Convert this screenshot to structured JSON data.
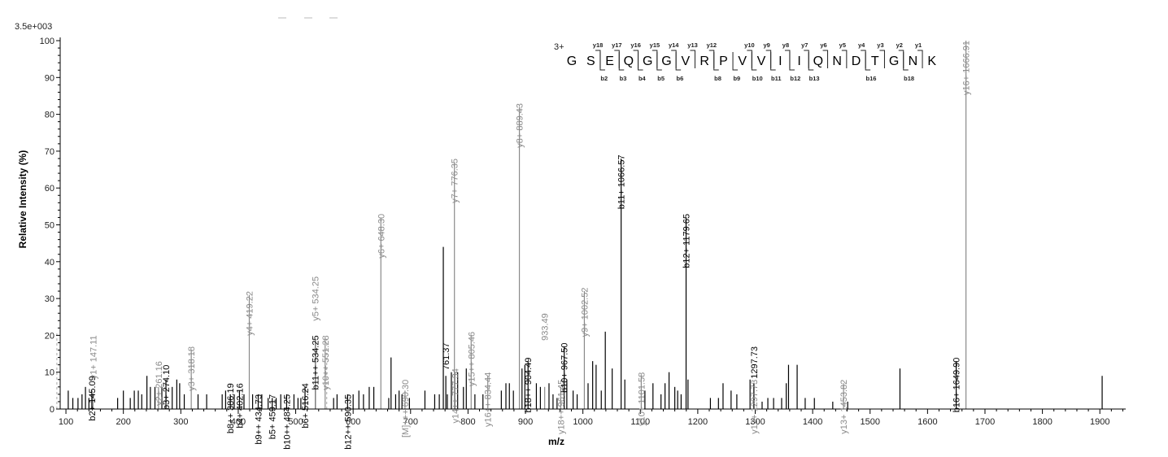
{
  "chart_data": {
    "type": "bar",
    "title": "",
    "scale_label": "3.5e+003",
    "xlabel": "m/z",
    "ylabel": "Relative   Intensity (%)",
    "xlim": [
      90,
      1945
    ],
    "ylim": [
      0,
      100
    ],
    "x_ticks": [
      100,
      200,
      300,
      400,
      500,
      600,
      700,
      800,
      900,
      1000,
      1100,
      1200,
      1300,
      1400,
      1500,
      1600,
      1700,
      1800,
      1900
    ],
    "y_ticks": [
      0,
      10,
      20,
      30,
      40,
      50,
      60,
      70,
      80,
      90,
      100
    ],
    "annotated_peaks": [
      {
        "mz": 145.09,
        "intensity": 5,
        "label": "b2+ 145.09",
        "color": "black",
        "label_y": 9
      },
      {
        "mz": 147.11,
        "intensity": 4,
        "label": "y1+ 147.11",
        "color": "gray",
        "label_y": 20
      },
      {
        "mz": 261.16,
        "intensity": 6,
        "label": "y2+ 261.16",
        "color": "gray",
        "label_y": 13
      },
      {
        "mz": 274.1,
        "intensity": 8,
        "label": "b3+ 274.10",
        "color": "black",
        "label_y": 12
      },
      {
        "mz": 318.18,
        "intensity": 16,
        "label": "y3+ 318.18",
        "color": "gray",
        "label_y": 17
      },
      {
        "mz": 386.19,
        "intensity": 4,
        "label": "b8++ 386.19",
        "color": "black",
        "label_y": 7
      },
      {
        "mz": 402.16,
        "intensity": 5,
        "label": "b4+ 402.16",
        "color": "black",
        "label_y": 7
      },
      {
        "mz": 419.22,
        "intensity": 31,
        "label": "y4+ 419.22",
        "color": "gray",
        "label_y": 32
      },
      {
        "mz": 434.73,
        "intensity": 4,
        "label": "b9++ 434.73",
        "color": "black",
        "label_y": 4
      },
      {
        "mz": 459.17,
        "intensity": 3,
        "label": "b5+ 459.17",
        "color": "black",
        "label_y": 4
      },
      {
        "mz": 484.25,
        "intensity": 4,
        "label": "b10++ 484.25",
        "color": "black",
        "label_y": 4
      },
      {
        "mz": 516.24,
        "intensity": 6,
        "label": "b6+ 516.24",
        "color": "black",
        "label_y": 7
      },
      {
        "mz": 534.25,
        "intensity": 19,
        "label": "b11++ 534.25",
        "color": "black",
        "label_y": 20
      },
      {
        "mz": 534.25,
        "intensity": 19,
        "label": "y5+ 534.25",
        "color": "gray",
        "label_y": 36
      },
      {
        "mz": 551.28,
        "intensity": 19,
        "label": "y10++ 551.28",
        "color": "gray",
        "label_y": 20
      },
      {
        "mz": 590.35,
        "intensity": 4,
        "label": "b12++ 590.35",
        "color": "black",
        "label_y": 4
      },
      {
        "mz": 648.3,
        "intensity": 52,
        "label": "y6+ 648.30",
        "color": "gray",
        "label_y": 53
      },
      {
        "mz": 690.3,
        "intensity": 5,
        "label": "[M]+++ 690.30",
        "color": "gray",
        "label_y": 8
      },
      {
        "mz": 761.37,
        "intensity": 9,
        "label": "761.37",
        "color": "black",
        "label_y": 18
      },
      {
        "mz": 776.35,
        "intensity": 67,
        "label": "y7+ 776.35",
        "color": "gray",
        "label_y": 68
      },
      {
        "mz": 777.34,
        "intensity": 10,
        "label": "y14++ 777.34",
        "color": "gray",
        "label_y": 11
      },
      {
        "mz": 805.46,
        "intensity": 20,
        "label": "y15++ 805.46",
        "color": "gray",
        "label_y": 21
      },
      {
        "mz": 834.44,
        "intensity": 9,
        "label": "y16++ 834.44",
        "color": "gray",
        "label_y": 10
      },
      {
        "mz": 889.43,
        "intensity": 82,
        "label": "y8+ 889.43",
        "color": "gray",
        "label_y": 83
      },
      {
        "mz": 904.49,
        "intensity": 13,
        "label": "b18++ 904.49",
        "color": "black",
        "label_y": 14
      },
      {
        "mz": 933.49,
        "intensity": 6,
        "label": "933.49",
        "color": "gray",
        "label_y": 26
      },
      {
        "mz": 961.45,
        "intensity": 6,
        "label": "y18++ 961.45",
        "color": "gray",
        "label_y": 8
      },
      {
        "mz": 967.5,
        "intensity": 17,
        "label": "b10+ 967.50",
        "color": "black",
        "label_y": 18
      },
      {
        "mz": 1002.52,
        "intensity": 32,
        "label": "y9+ 1002.52",
        "color": "gray",
        "label_y": 33
      },
      {
        "mz": 1066.57,
        "intensity": 68,
        "label": "b11+ 1066.57",
        "color": "black",
        "label_y": 69
      },
      {
        "mz": 1101.58,
        "intensity": 9,
        "label": "y10+ 1101.58",
        "color": "gray",
        "label_y": 10
      },
      {
        "mz": 1179.65,
        "intensity": 52,
        "label": "b12+ 1179.65",
        "color": "black",
        "label_y": 53
      },
      {
        "mz": 1297.73,
        "intensity": 7,
        "label": "y12+ 1297.73",
        "color": "gray",
        "label_y": 8
      },
      {
        "mz": 1297.73,
        "intensity": 7,
        "label": "1297.73",
        "color": "black",
        "label_y": 17
      },
      {
        "mz": 1453.82,
        "intensity": 7,
        "label": "y13+ 1453.82",
        "color": "gray",
        "label_y": 8
      },
      {
        "mz": 1649.9,
        "intensity": 13,
        "label": "b16+ 1649.90",
        "color": "black",
        "label_y": 14
      },
      {
        "mz": 1666.91,
        "intensity": 100,
        "label": "y16+ 1666.91",
        "color": "gray",
        "label_y": 100
      }
    ],
    "other_peaks": [
      {
        "mz": 104,
        "intensity": 5
      },
      {
        "mz": 112,
        "intensity": 3
      },
      {
        "mz": 121,
        "intensity": 3
      },
      {
        "mz": 128,
        "intensity": 4
      },
      {
        "mz": 134,
        "intensity": 6
      },
      {
        "mz": 140,
        "intensity": 3
      },
      {
        "mz": 190,
        "intensity": 3
      },
      {
        "mz": 200,
        "intensity": 5
      },
      {
        "mz": 212,
        "intensity": 3
      },
      {
        "mz": 219,
        "intensity": 5
      },
      {
        "mz": 226,
        "intensity": 5
      },
      {
        "mz": 232,
        "intensity": 4
      },
      {
        "mz": 241,
        "intensity": 9
      },
      {
        "mz": 247,
        "intensity": 6
      },
      {
        "mz": 255,
        "intensity": 6
      },
      {
        "mz": 267,
        "intensity": 6
      },
      {
        "mz": 285,
        "intensity": 6
      },
      {
        "mz": 293,
        "intensity": 8
      },
      {
        "mz": 298,
        "intensity": 7
      },
      {
        "mz": 306,
        "intensity": 4
      },
      {
        "mz": 330,
        "intensity": 4
      },
      {
        "mz": 345,
        "intensity": 4
      },
      {
        "mz": 372,
        "intensity": 4
      },
      {
        "mz": 378,
        "intensity": 5
      },
      {
        "mz": 393,
        "intensity": 4
      },
      {
        "mz": 410,
        "intensity": 4
      },
      {
        "mz": 425,
        "intensity": 4
      },
      {
        "mz": 441,
        "intensity": 4
      },
      {
        "mz": 452,
        "intensity": 3
      },
      {
        "mz": 466,
        "intensity": 3
      },
      {
        "mz": 474,
        "intensity": 4
      },
      {
        "mz": 497,
        "intensity": 4
      },
      {
        "mz": 504,
        "intensity": 3
      },
      {
        "mz": 509,
        "intensity": 3
      },
      {
        "mz": 566,
        "intensity": 3
      },
      {
        "mz": 572,
        "intensity": 4
      },
      {
        "mz": 600,
        "intensity": 4
      },
      {
        "mz": 610,
        "intensity": 5
      },
      {
        "mz": 618,
        "intensity": 4
      },
      {
        "mz": 628,
        "intensity": 6
      },
      {
        "mz": 636,
        "intensity": 6
      },
      {
        "mz": 662,
        "intensity": 3
      },
      {
        "mz": 666,
        "intensity": 14
      },
      {
        "mz": 674,
        "intensity": 4
      },
      {
        "mz": 680,
        "intensity": 5
      },
      {
        "mz": 685,
        "intensity": 4
      },
      {
        "mz": 698,
        "intensity": 3
      },
      {
        "mz": 725,
        "intensity": 5
      },
      {
        "mz": 742,
        "intensity": 4
      },
      {
        "mz": 750,
        "intensity": 4
      },
      {
        "mz": 757,
        "intensity": 44
      },
      {
        "mz": 764,
        "intensity": 4
      },
      {
        "mz": 771,
        "intensity": 10
      },
      {
        "mz": 782,
        "intensity": 10
      },
      {
        "mz": 792,
        "intensity": 6
      },
      {
        "mz": 797,
        "intensity": 11
      },
      {
        "mz": 812,
        "intensity": 4
      },
      {
        "mz": 826,
        "intensity": 4
      },
      {
        "mz": 858,
        "intensity": 5
      },
      {
        "mz": 866,
        "intensity": 7
      },
      {
        "mz": 872,
        "intensity": 7
      },
      {
        "mz": 879,
        "intensity": 5
      },
      {
        "mz": 894,
        "intensity": 11
      },
      {
        "mz": 899,
        "intensity": 12
      },
      {
        "mz": 919,
        "intensity": 7
      },
      {
        "mz": 926,
        "intensity": 6
      },
      {
        "mz": 941,
        "intensity": 7
      },
      {
        "mz": 948,
        "intensity": 4
      },
      {
        "mz": 955,
        "intensity": 3
      },
      {
        "mz": 972,
        "intensity": 8
      },
      {
        "mz": 983,
        "intensity": 5
      },
      {
        "mz": 990,
        "intensity": 4
      },
      {
        "mz": 1009,
        "intensity": 7
      },
      {
        "mz": 1017,
        "intensity": 13
      },
      {
        "mz": 1023,
        "intensity": 12
      },
      {
        "mz": 1032,
        "intensity": 5
      },
      {
        "mz": 1039,
        "intensity": 21
      },
      {
        "mz": 1051,
        "intensity": 11
      },
      {
        "mz": 1073,
        "intensity": 8
      },
      {
        "mz": 1108,
        "intensity": 5
      },
      {
        "mz": 1122,
        "intensity": 7
      },
      {
        "mz": 1136,
        "intensity": 4
      },
      {
        "mz": 1143,
        "intensity": 7
      },
      {
        "mz": 1150,
        "intensity": 10
      },
      {
        "mz": 1160,
        "intensity": 6
      },
      {
        "mz": 1165,
        "intensity": 5
      },
      {
        "mz": 1171,
        "intensity": 4
      },
      {
        "mz": 1183,
        "intensity": 8
      },
      {
        "mz": 1222,
        "intensity": 3
      },
      {
        "mz": 1236,
        "intensity": 3
      },
      {
        "mz": 1244,
        "intensity": 7
      },
      {
        "mz": 1258,
        "intensity": 5
      },
      {
        "mz": 1268,
        "intensity": 4
      },
      {
        "mz": 1291,
        "intensity": 8
      },
      {
        "mz": 1312,
        "intensity": 2
      },
      {
        "mz": 1322,
        "intensity": 3
      },
      {
        "mz": 1332,
        "intensity": 3
      },
      {
        "mz": 1346,
        "intensity": 3
      },
      {
        "mz": 1354,
        "intensity": 7
      },
      {
        "mz": 1358,
        "intensity": 12
      },
      {
        "mz": 1373,
        "intensity": 12
      },
      {
        "mz": 1387,
        "intensity": 3
      },
      {
        "mz": 1403,
        "intensity": 3
      },
      {
        "mz": 1435,
        "intensity": 2
      },
      {
        "mz": 1461,
        "intensity": 2
      },
      {
        "mz": 1552,
        "intensity": 11
      },
      {
        "mz": 1904,
        "intensity": 9
      }
    ],
    "sequence": {
      "charge": "3+",
      "residues": [
        "G",
        "S",
        "E",
        "Q",
        "G",
        "G",
        "V",
        "R",
        "P",
        "V",
        "V",
        "I",
        "I",
        "Q",
        "N",
        "D",
        "T",
        "G",
        "N",
        "K"
      ],
      "y_ions": [
        {
          "after": 2,
          "label": "18"
        },
        {
          "after": 3,
          "label": "17"
        },
        {
          "after": 4,
          "label": "16"
        },
        {
          "after": 5,
          "label": "15"
        },
        {
          "after": 6,
          "label": "14"
        },
        {
          "after": 7,
          "label": "13"
        },
        {
          "after": 8,
          "label": "12"
        },
        {
          "after": 10,
          "label": "10"
        },
        {
          "after": 11,
          "label": "9"
        },
        {
          "after": 12,
          "label": "8"
        },
        {
          "after": 13,
          "label": "7"
        },
        {
          "after": 14,
          "label": "6"
        },
        {
          "after": 15,
          "label": "5"
        },
        {
          "after": 16,
          "label": "4"
        },
        {
          "after": 17,
          "label": "3"
        },
        {
          "after": 18,
          "label": "2"
        },
        {
          "after": 19,
          "label": "1"
        }
      ],
      "b_ions": [
        {
          "after": 2,
          "label": "2"
        },
        {
          "after": 3,
          "label": "3"
        },
        {
          "after": 4,
          "label": "4"
        },
        {
          "after": 5,
          "label": "5"
        },
        {
          "after": 6,
          "label": "6"
        },
        {
          "after": 8,
          "label": "8"
        },
        {
          "after": 9,
          "label": "9"
        },
        {
          "after": 10,
          "label": "10"
        },
        {
          "after": 11,
          "label": "11"
        },
        {
          "after": 12,
          "label": "12"
        },
        {
          "after": 13,
          "label": "13"
        },
        {
          "after": 16,
          "label": "16"
        },
        {
          "after": 18,
          "label": "18"
        }
      ]
    },
    "colors": {
      "black": "#000000",
      "gray": "#8a8a8a",
      "axis": "#000000"
    }
  }
}
